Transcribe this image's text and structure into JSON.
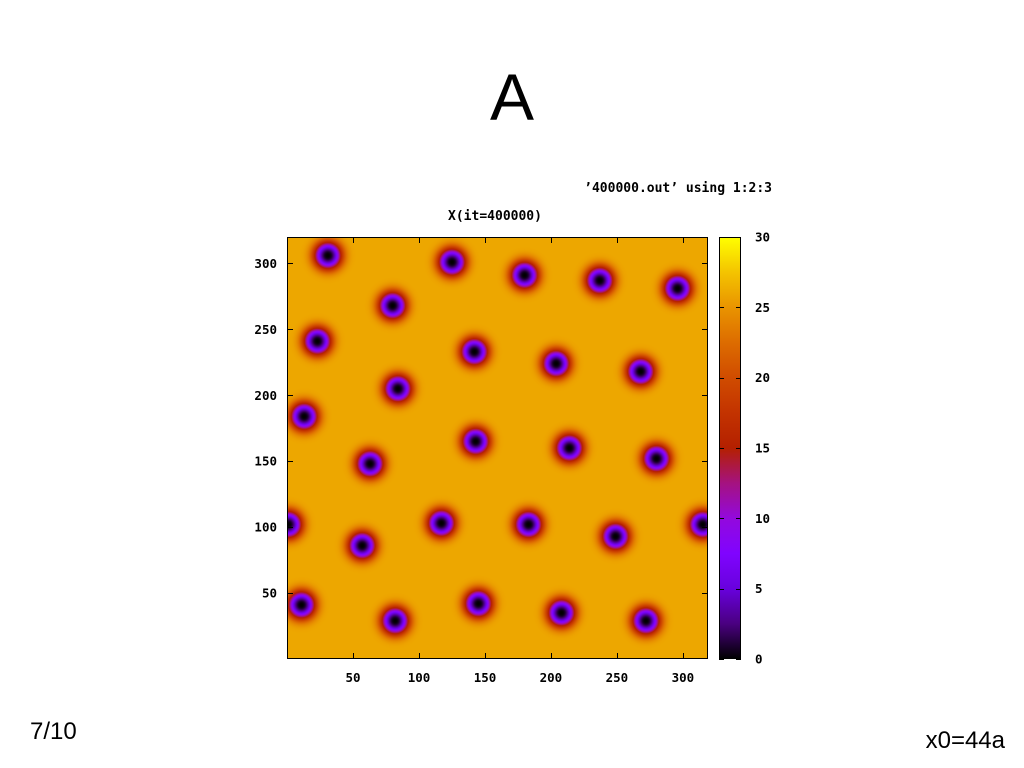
{
  "slide": {
    "title": "A",
    "page_number": "7/10",
    "footer": "x0=44a"
  },
  "chart_data": {
    "type": "heatmap",
    "key": "’400000.out’ using 1:2:3",
    "title": "X(it=400000)",
    "xlim": [
      0,
      319
    ],
    "ylim": [
      0,
      320
    ],
    "xticks": [
      50,
      100,
      150,
      200,
      250,
      300
    ],
    "yticks": [
      50,
      100,
      150,
      200,
      250,
      300
    ],
    "grid": false,
    "colorbar": {
      "placement": "right",
      "range": [
        0,
        30
      ],
      "ticks": [
        0,
        5,
        10,
        15,
        20,
        25,
        30
      ],
      "colors": [
        {
          "value": 0,
          "color": "#000000"
        },
        {
          "value": 2.5,
          "color": "#4a0080"
        },
        {
          "value": 5,
          "color": "#6801dd"
        },
        {
          "value": 7.5,
          "color": "#8004ff"
        },
        {
          "value": 10,
          "color": "#9309dd"
        },
        {
          "value": 12.5,
          "color": "#a51280"
        },
        {
          "value": 15,
          "color": "#b42000"
        },
        {
          "value": 17.5,
          "color": "#c33300"
        },
        {
          "value": 20,
          "color": "#d04c00"
        },
        {
          "value": 22.5,
          "color": "#dd6c00"
        },
        {
          "value": 25,
          "color": "#e99400"
        },
        {
          "value": 27.5,
          "color": "#f4c400"
        },
        {
          "value": 30,
          "color": "#ffff00"
        }
      ]
    },
    "background_value": 26,
    "minimum_value": 0,
    "minima": [
      {
        "x": 31,
        "y": 306
      },
      {
        "x": 125,
        "y": 301
      },
      {
        "x": 180,
        "y": 291
      },
      {
        "x": 237,
        "y": 287
      },
      {
        "x": 296,
        "y": 281
      },
      {
        "x": 80,
        "y": 268
      },
      {
        "x": 23,
        "y": 241
      },
      {
        "x": 142,
        "y": 233
      },
      {
        "x": 204,
        "y": 224
      },
      {
        "x": 268,
        "y": 218
      },
      {
        "x": 84,
        "y": 205
      },
      {
        "x": 13,
        "y": 184
      },
      {
        "x": 143,
        "y": 165
      },
      {
        "x": 214,
        "y": 160
      },
      {
        "x": 280,
        "y": 152
      },
      {
        "x": 63,
        "y": 148
      },
      {
        "x": 1,
        "y": 102
      },
      {
        "x": 117,
        "y": 103
      },
      {
        "x": 183,
        "y": 102
      },
      {
        "x": 249,
        "y": 93
      },
      {
        "x": 315,
        "y": 102
      },
      {
        "x": 57,
        "y": 86
      },
      {
        "x": 11,
        "y": 41
      },
      {
        "x": 145,
        "y": 42
      },
      {
        "x": 82,
        "y": 29
      },
      {
        "x": 208,
        "y": 35
      },
      {
        "x": 272,
        "y": 29
      }
    ]
  }
}
